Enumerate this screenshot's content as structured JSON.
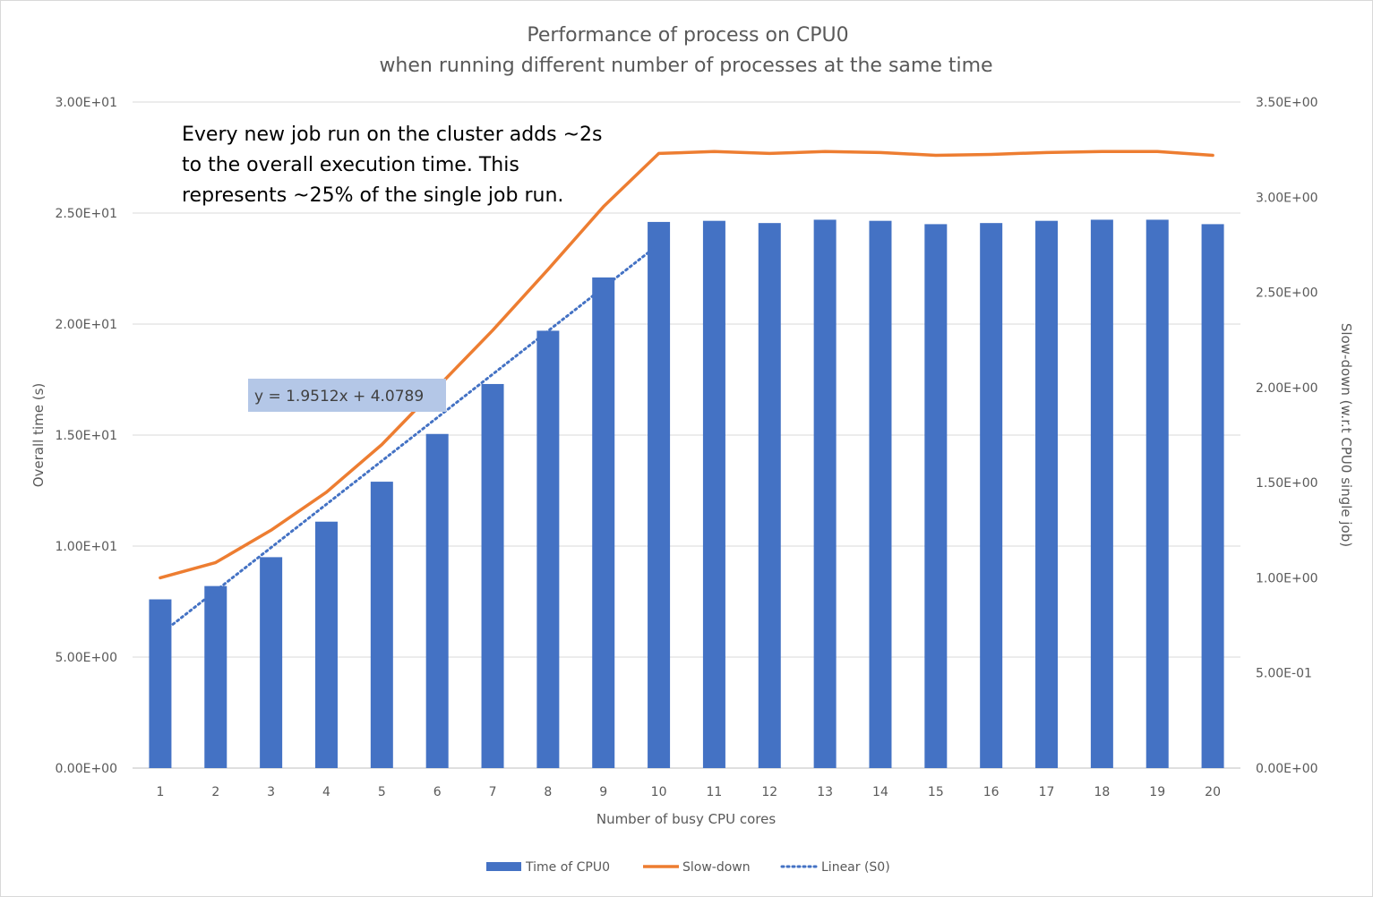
{
  "chart_data": {
    "type": "bar",
    "title": "Performance of process on CPU0",
    "subtitle": "when running different number of processes at the same time",
    "xlabel": "Number of busy CPU cores",
    "ylabel": "Overall time (s)",
    "y2label": "Slow-down (w.r.t CPU0 single job)",
    "categories": [
      "1",
      "2",
      "3",
      "4",
      "5",
      "6",
      "7",
      "8",
      "9",
      "10",
      "11",
      "12",
      "13",
      "14",
      "15",
      "16",
      "17",
      "18",
      "19",
      "20"
    ],
    "ylim": [
      0,
      30
    ],
    "y2lim": [
      0,
      3.5
    ],
    "yticks": [
      "0.00E+00",
      "5.00E+00",
      "1.00E+01",
      "1.50E+01",
      "2.00E+01",
      "2.50E+01",
      "3.00E+01"
    ],
    "y2ticks": [
      "0.00E+00",
      "5.00E-01",
      "1.00E+00",
      "1.50E+00",
      "2.00E+00",
      "2.50E+00",
      "3.00E+00",
      "3.50E+00"
    ],
    "grid": true,
    "legend_position": "bottom",
    "series": [
      {
        "name": "Time of CPU0",
        "type": "bar",
        "axis": "left",
        "color": "#4472C4",
        "values": [
          7.6,
          8.2,
          9.5,
          11.1,
          12.9,
          15.05,
          17.3,
          19.7,
          22.1,
          24.6,
          24.65,
          24.55,
          24.7,
          24.65,
          24.5,
          24.55,
          24.65,
          24.7,
          24.7,
          24.5
        ]
      },
      {
        "name": "Slow-down",
        "type": "line",
        "axis": "right",
        "color": "#ED7D31",
        "values": [
          1.0,
          1.08,
          1.25,
          1.45,
          1.7,
          2.0,
          2.3,
          2.62,
          2.95,
          3.23,
          3.24,
          3.23,
          3.24,
          3.235,
          3.22,
          3.225,
          3.235,
          3.24,
          3.24,
          3.22
        ]
      },
      {
        "name": "Linear (S0)",
        "type": "trendline",
        "axis": "left",
        "color": "#4472C4",
        "slope": 1.9512,
        "intercept": 4.0789,
        "x_range": [
          1,
          10
        ]
      }
    ],
    "annotations": {
      "note_lines": [
        "Every new job run on the cluster adds ~2s",
        "to the overall execution time. This",
        "represents ~25% of the single job run."
      ],
      "equation": "y = 1.9512x + 4.0789"
    }
  }
}
